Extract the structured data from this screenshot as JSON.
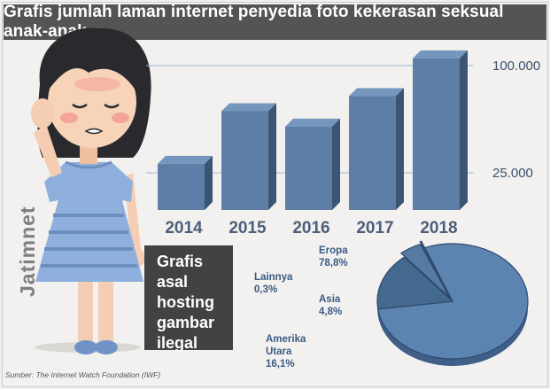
{
  "title": "Grafis jumlah laman internet penyedia foto kekerasan seksual anak-anak",
  "brand": "Jatimnet",
  "caption": {
    "line1": "Grafis asal",
    "line2": "hosting",
    "line3": "gambar",
    "line4": "ilegal"
  },
  "source": "Sumber: The Internet Watch Foundation (IWF)",
  "colors": {
    "title_bg": "#545454",
    "bar_front": "#5d7ea6",
    "bar_top": "#7596bd",
    "bar_side": "#3b5473",
    "pie_main": "#5c84b1",
    "background": "#f2f1ef"
  },
  "chart_data": [
    {
      "type": "bar",
      "categories": [
        "2014",
        "2015",
        "2016",
        "2017",
        "2018"
      ],
      "values": [
        31266,
        68092,
        57335,
        78589,
        105047
      ],
      "y_ticks": [
        {
          "value": 25000,
          "label": "25.000"
        },
        {
          "value": 100000,
          "label": "100.000"
        }
      ],
      "ylim": [
        0,
        110000
      ]
    },
    {
      "type": "pie",
      "slices": [
        {
          "label": "Eropa",
          "value_label": "78,8%",
          "value": 78.8
        },
        {
          "label": "Amerika Utara",
          "value_label": "16,1%",
          "value": 16.1
        },
        {
          "label": "Asia",
          "value_label": "4,8%",
          "value": 4.8
        },
        {
          "label": "Lainnya",
          "value_label": "0,3%",
          "value": 0.3
        }
      ]
    }
  ]
}
